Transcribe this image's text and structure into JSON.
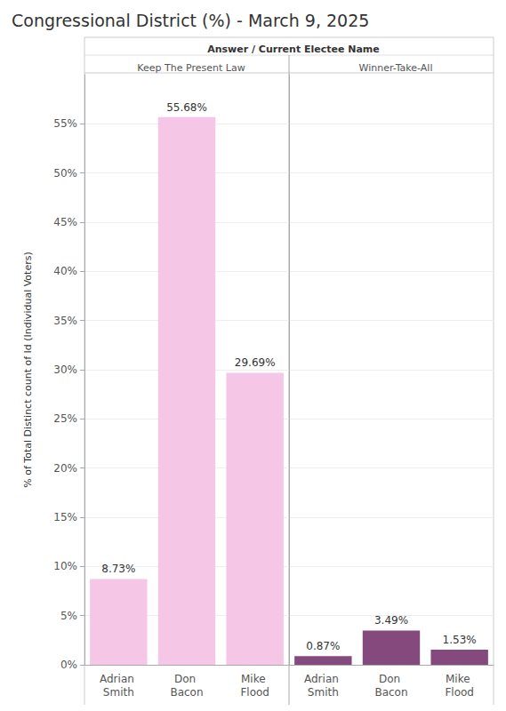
{
  "chart_data": {
    "type": "bar",
    "title": "Congressional District (%) - March 9, 2025",
    "facet_title": "Answer / Current Electee Name",
    "y_label": "% of Total Distinct count of Id (Individual Voters)",
    "ylim": [
      0,
      60
    ],
    "yticks": [
      {
        "value": 0,
        "label": "0%"
      },
      {
        "value": 5,
        "label": "5%"
      },
      {
        "value": 10,
        "label": "10%"
      },
      {
        "value": 15,
        "label": "15%"
      },
      {
        "value": 20,
        "label": "20%"
      },
      {
        "value": 25,
        "label": "25%"
      },
      {
        "value": 30,
        "label": "30%"
      },
      {
        "value": 35,
        "label": "35%"
      },
      {
        "value": 40,
        "label": "40%"
      },
      {
        "value": 45,
        "label": "45%"
      },
      {
        "value": 50,
        "label": "50%"
      },
      {
        "value": 55,
        "label": "55%"
      }
    ],
    "grid": true,
    "data_labels": true,
    "panels": [
      {
        "title": "Keep The Present Law",
        "categories": [
          "Adrian Smith",
          "Don Bacon",
          "Mike Flood"
        ],
        "values": [
          8.73,
          55.68,
          29.69
        ],
        "value_labels": [
          "8.73%",
          "55.68%",
          "29.69%"
        ],
        "color": "#f5c6e6"
      },
      {
        "title": "Winner-Take-All",
        "categories": [
          "Adrian Smith",
          "Don Bacon",
          "Mike Flood"
        ],
        "values": [
          0.87,
          3.49,
          1.53
        ],
        "value_labels": [
          "0.87%",
          "3.49%",
          "1.53%"
        ],
        "color": "#844a7e"
      }
    ]
  }
}
